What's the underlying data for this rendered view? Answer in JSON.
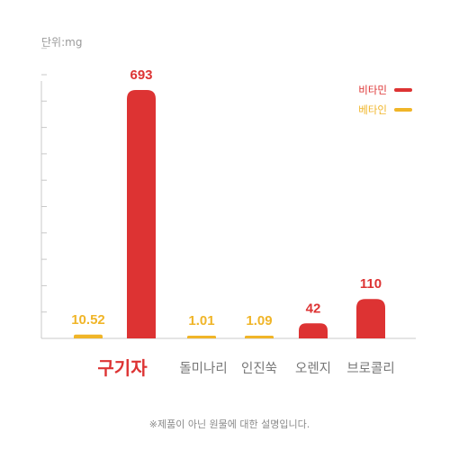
{
  "unit_label": "단위:mg",
  "footnote": "※제품이 아닌 원물에 대한 설명입니다.",
  "colors": {
    "vitamin": "#dd3333",
    "beta": "#f0b528",
    "axis": "#c8c8c8",
    "category_default": "#777777",
    "category_highlight": "#dd3333"
  },
  "chart_data": {
    "type": "bar",
    "title": "",
    "xlabel": "",
    "ylabel": "",
    "categories": [
      "구기자",
      "돌미나리",
      "인진쑥",
      "오렌지",
      "브로콜리"
    ],
    "highlight_category": "구기자",
    "grid": false,
    "legend_position": "top-right",
    "series": [
      {
        "name": "비타민",
        "color": "#dd3333",
        "values": [
          693,
          null,
          null,
          42,
          110
        ]
      },
      {
        "name": "베타인",
        "color": "#f0b528",
        "values": [
          10.52,
          1.01,
          1.09,
          null,
          null
        ]
      }
    ],
    "data_labels": [
      {
        "category": "구기자",
        "series": "베타인",
        "text": "10.52"
      },
      {
        "category": "구기자",
        "series": "비타민",
        "text": "693"
      },
      {
        "category": "돌미나리",
        "series": "베타인",
        "text": "1.01"
      },
      {
        "category": "인진쑥",
        "series": "베타인",
        "text": "1.09"
      },
      {
        "category": "오렌지",
        "series": "비타민",
        "text": "42"
      },
      {
        "category": "브로콜리",
        "series": "비타민",
        "text": "110"
      }
    ]
  }
}
